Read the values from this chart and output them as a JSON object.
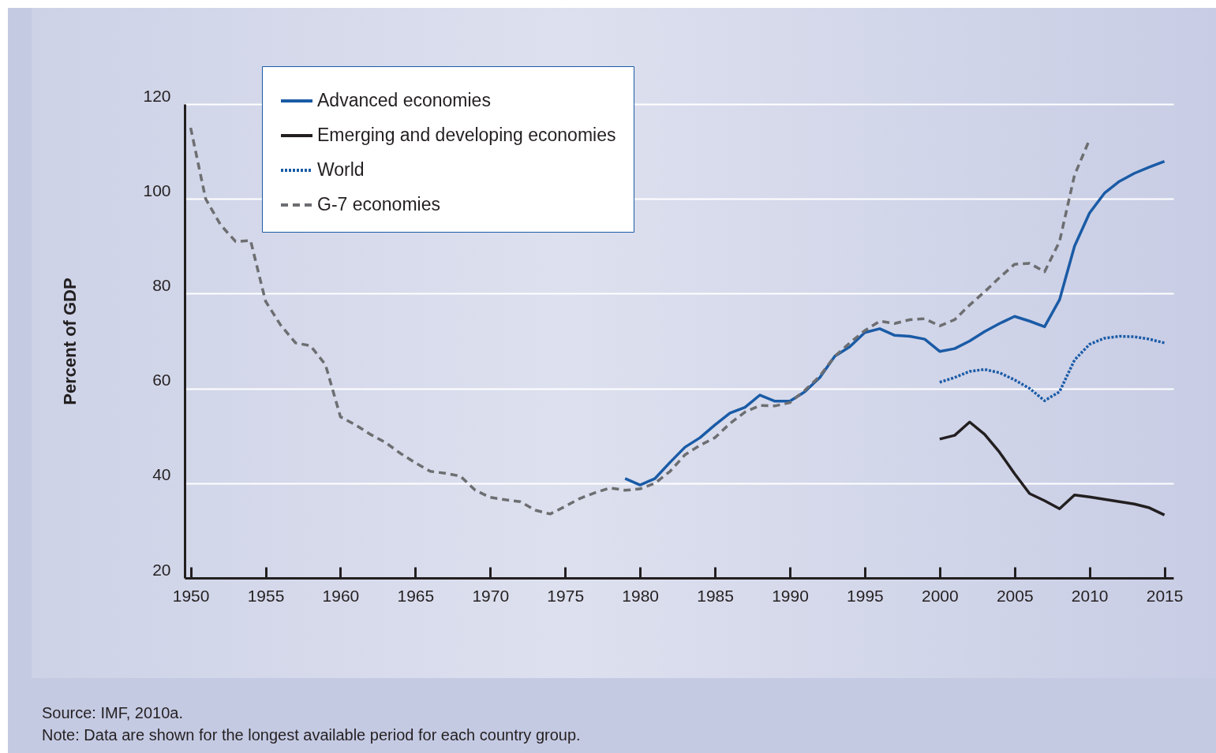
{
  "chart_data": {
    "type": "line",
    "ylabel": "Percent of GDP",
    "x": [
      1950,
      1951,
      1952,
      1953,
      1954,
      1955,
      1956,
      1957,
      1958,
      1959,
      1960,
      1961,
      1962,
      1963,
      1964,
      1965,
      1966,
      1967,
      1968,
      1969,
      1970,
      1971,
      1972,
      1973,
      1974,
      1975,
      1976,
      1977,
      1978,
      1979,
      1980,
      1981,
      1982,
      1983,
      1984,
      1985,
      1986,
      1987,
      1988,
      1989,
      1990,
      1991,
      1992,
      1993,
      1994,
      1995,
      1996,
      1997,
      1998,
      1999,
      2000,
      2001,
      2002,
      2003,
      2004,
      2005,
      2006,
      2007,
      2008,
      2009,
      2010
    ],
    "series": [
      {
        "name": "Advanced economies",
        "color": "#1a5ba6",
        "line_style": "solid",
        "x": [
          1979,
          1980,
          1981,
          1982,
          1983,
          1984,
          1985,
          1986,
          1987,
          1988,
          1989,
          1990,
          1991,
          1992,
          1993,
          1994,
          1995,
          1996,
          1997,
          1998,
          1999,
          2000,
          2001,
          2002,
          2003,
          2004,
          2005,
          2006,
          2007,
          2008,
          2009,
          2010,
          2011,
          2012,
          2013,
          2014,
          2015
        ],
        "values": [
          41,
          39.6,
          41,
          44.4,
          47.6,
          49.6,
          52.3,
          54.8,
          56,
          58.6,
          57.3,
          57.3,
          59.3,
          62.3,
          66.8,
          68.8,
          71.8,
          72.6,
          71.2,
          71,
          70.4,
          67.8,
          68.4,
          70,
          72,
          73.7,
          75.2,
          74.2,
          73,
          78.7,
          90,
          97,
          101.2,
          103.7,
          105.4,
          106.7,
          107.9
        ]
      },
      {
        "name": "Emerging and developing economies",
        "color": "#231f20",
        "line_style": "solid",
        "x": [
          2000,
          2001,
          2002,
          2003,
          2004,
          2005,
          2006,
          2007,
          2008,
          2009,
          2010,
          2011,
          2012,
          2013,
          2014,
          2015
        ],
        "values": [
          49.3,
          50.1,
          52.9,
          50.3,
          46.5,
          42,
          37.8,
          36.3,
          34.6,
          37.5,
          37.1,
          36.6,
          36.1,
          35.6,
          34.8,
          33.3
        ]
      },
      {
        "name": "World",
        "color": "#1a5ba6",
        "line_style": "dotted",
        "x": [
          2000,
          2001,
          2002,
          2003,
          2004,
          2005,
          2006,
          2007,
          2008,
          2009,
          2010,
          2011,
          2012,
          2013,
          2014,
          2015
        ],
        "values": [
          61.3,
          62.3,
          63.6,
          64,
          63.3,
          61.8,
          60,
          57.4,
          59.3,
          66,
          69.3,
          70.6,
          71,
          70.9,
          70.4,
          69.6
        ]
      },
      {
        "name": "G-7 economies",
        "color": "#6d6e71",
        "line_style": "dashed",
        "values": [
          115,
          100,
          94.5,
          91,
          91.2,
          78.4,
          73.4,
          69.6,
          69,
          65,
          54,
          52.3,
          50.3,
          48.6,
          46.3,
          44.3,
          42.5,
          42.1,
          41.5,
          38.5,
          37,
          36.5,
          36.1,
          34.3,
          33.5,
          35.1,
          36.8,
          38,
          39,
          38.5,
          38.8,
          40,
          42.5,
          46,
          48,
          49.6,
          52.6,
          55,
          56.4,
          56.3,
          57,
          59.6,
          62.6,
          66.8,
          69.6,
          72.2,
          74.2,
          73.7,
          74.5,
          74.7,
          73.2,
          74.5,
          77.6,
          80.4,
          83.4,
          86.2,
          86.4,
          84.6,
          91,
          105,
          112.5
        ]
      }
    ],
    "xlim": [
      1949.6,
      2015.6
    ],
    "xticks": [
      1950,
      1955,
      1960,
      1965,
      1970,
      1975,
      1980,
      1985,
      1990,
      1995,
      2000,
      2005,
      2010,
      2015
    ],
    "ylim": [
      20,
      120
    ],
    "yticks": [
      20,
      40,
      60,
      80,
      100,
      120
    ],
    "grid": "y",
    "legend": "top left",
    "annotations": [
      "Source: IMF, 2010a.",
      "Note: Data are shown for the longest available period for each country group."
    ]
  }
}
